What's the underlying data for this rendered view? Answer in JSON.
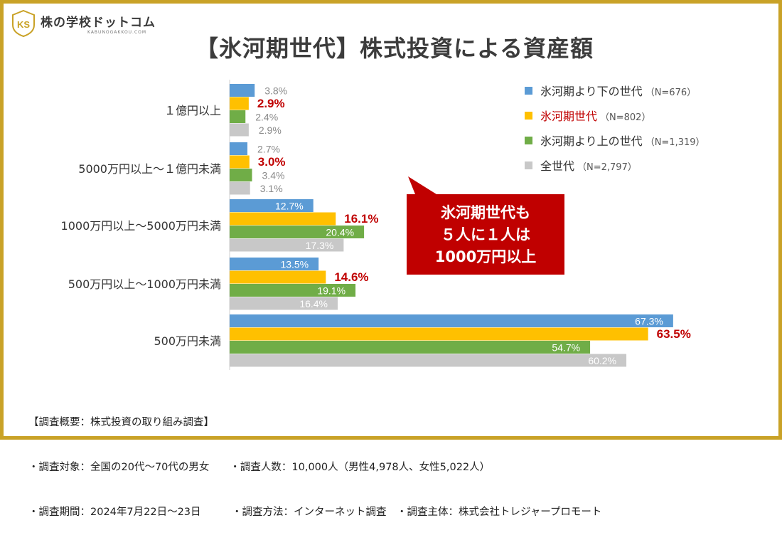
{
  "logo": {
    "name": "株の学校ドットコム",
    "sub": "KABUNOGAKKOU.COM",
    "mark": "KS"
  },
  "title": "【氷河期世代】株式投資による資産額",
  "colors": {
    "blue": "#5b9bd5",
    "gold": "#ffc000",
    "green": "#70ad47",
    "gray": "#c8c8c8",
    "highlight": "#c00000",
    "frame": "#c9a227"
  },
  "legend": [
    {
      "label": "氷河期より下の世代",
      "n": "（N=676）",
      "color": "#5b9bd5",
      "highlight": false
    },
    {
      "label": "氷河期世代",
      "n": "（N=802）",
      "color": "#ffc000",
      "highlight": true
    },
    {
      "label": "氷河期より上の世代",
      "n": "（N=1,319）",
      "color": "#70ad47",
      "highlight": false
    },
    {
      "label": "全世代",
      "n": "（N=2,797）",
      "color": "#c8c8c8",
      "highlight": false
    }
  ],
  "callout": {
    "lines": [
      "氷河期世代も",
      "５人に１人は",
      "1000万円以上"
    ]
  },
  "chart_data": {
    "type": "bar",
    "orientation": "horizontal",
    "title": "【氷河期世代】株式投資による資産額",
    "categories": [
      "１億円以上",
      "5000万円以上～１億円未満",
      "1000万円以上～5000万円未満",
      "500万円以上～1000万円未満",
      "500万円未満"
    ],
    "series": [
      {
        "name": "氷河期より下の世代",
        "values": [
          3.8,
          2.7,
          12.7,
          13.5,
          67.3
        ],
        "labels": [
          "3.8%",
          "2.7%",
          "12.7%",
          "13.5%",
          "67.3%"
        ],
        "color": "#5b9bd5"
      },
      {
        "name": "氷河期世代",
        "values": [
          2.9,
          3.0,
          16.1,
          14.6,
          63.5
        ],
        "labels": [
          "2.9%",
          "3.0%",
          "16.1%",
          "14.6%",
          "63.5%"
        ],
        "color": "#ffc000",
        "highlight": true
      },
      {
        "name": "氷河期より上の世代",
        "values": [
          2.4,
          3.4,
          20.4,
          19.1,
          54.7
        ],
        "labels": [
          "2.4%",
          "3.4%",
          "20.4%",
          "19.1%",
          "54.7%"
        ],
        "color": "#70ad47"
      },
      {
        "name": "全世代",
        "values": [
          2.9,
          3.1,
          17.3,
          16.4,
          60.2
        ],
        "labels": [
          "2.9%",
          "3.1%",
          "17.3%",
          "16.4%",
          "60.2%"
        ],
        "color": "#c8c8c8"
      }
    ],
    "unit": "%",
    "xlim": [
      0,
      70
    ],
    "grid": false,
    "legend_position": "top-right"
  },
  "footnotes": [
    "【調査概要：株式投資の取り組み調査】",
    "・調査対象：全国の20代～70代の男女　　・調査人数：10,000人（男性4,978人、女性5,022人）",
    "・調査期間：2024年7月22日～23日　　　・調査方法：インターネット調査　・調査主体：株式会社トレジャープロモート"
  ]
}
